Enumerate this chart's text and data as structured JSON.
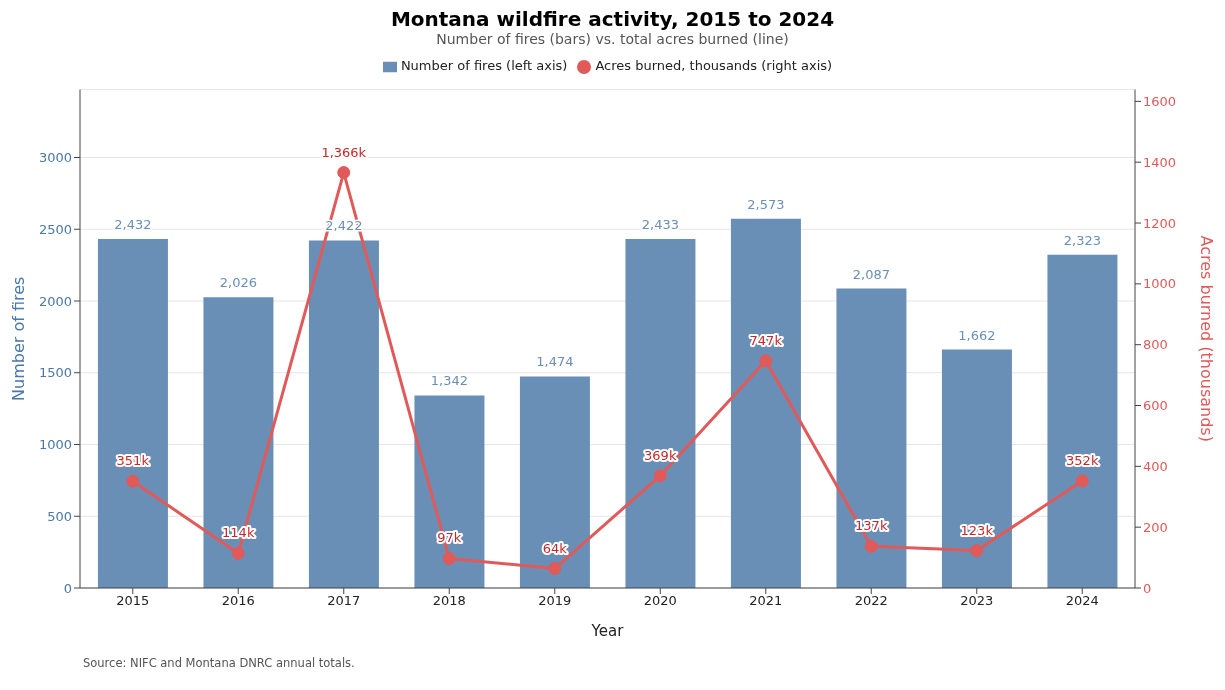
{
  "chart_data": {
    "type": "bar",
    "title": "Montana wildfire activity, 2015 to 2024",
    "subtitle": "Number of fires (bars) vs. total acres burned (line)",
    "xlabel": "Year",
    "ylabel": "Number of fires",
    "y2label": "Acres burned (thousands)",
    "categories": [
      "2015",
      "2016",
      "2017",
      "2018",
      "2019",
      "2020",
      "2021",
      "2022",
      "2023",
      "2024"
    ],
    "series": [
      {
        "name": "Number of fires (left axis)",
        "color": "#6a8fb6",
        "values": [
          2432,
          2026,
          2422,
          1342,
          1474,
          2433,
          2573,
          2087,
          1662,
          2323
        ],
        "value_labels": [
          "2,432",
          "2,026",
          "2,422",
          "1,342",
          "1,474",
          "2,433",
          "2,573",
          "2,087",
          "1,662",
          "2,323"
        ]
      },
      {
        "name": "Acres burned, thousands (right axis)",
        "type": "line",
        "axis": "y2",
        "color": "#e05a5a",
        "values": [
          351,
          114,
          1366,
          97,
          64,
          369,
          747,
          137,
          123,
          352
        ],
        "value_labels": [
          "351k",
          "114k",
          "1,366k",
          "97k",
          "64k",
          "369k",
          "747k",
          "137k",
          "123k",
          "352k"
        ]
      }
    ],
    "ylim": [
      0,
      3474
    ],
    "yticks": [
      0,
      500,
      1000,
      1500,
      2000,
      2500,
      3000
    ],
    "y2lim": [
      0,
      1639
    ],
    "y2ticks": [
      0,
      200,
      400,
      600,
      800,
      1000,
      1200,
      1400,
      1600
    ],
    "grid": "y",
    "legend": "top",
    "marker": "circle",
    "line_style": "solid",
    "annotations": [
      "Source: NIFC and Montana DNRC annual totals."
    ]
  }
}
